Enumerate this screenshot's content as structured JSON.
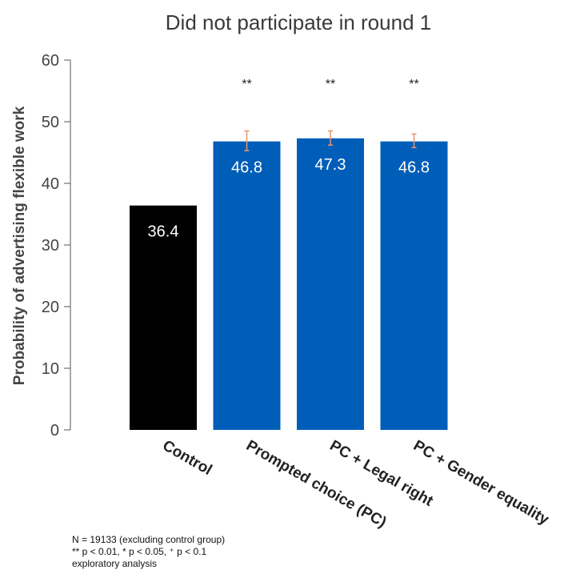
{
  "chart_data": {
    "type": "bar",
    "title": "Did not participate in round 1",
    "xlabel": "",
    "ylabel": "Probability of advertising flexible work",
    "ylim": [
      0,
      60
    ],
    "yticks": [
      0,
      10,
      20,
      30,
      40,
      50,
      60
    ],
    "categories": [
      "Control",
      "Prompted choice (PC)",
      "PC + Legal right",
      "PC + Gender equality"
    ],
    "values": [
      36.4,
      46.8,
      47.3,
      46.8
    ],
    "data_labels": [
      "36.4",
      "46.8",
      "47.3",
      "46.8"
    ],
    "error_bars": [
      null,
      [
        45.3,
        48.5
      ],
      [
        46.2,
        48.5
      ],
      [
        45.8,
        48.0
      ]
    ],
    "significance": [
      "",
      "**",
      "**",
      "**"
    ],
    "bar_colors": [
      "#000000",
      "#005eb8",
      "#005eb8",
      "#005eb8"
    ],
    "error_bar_color": "#e8956a",
    "grid": false,
    "legend": "none"
  },
  "notes": {
    "line1": "N = 19133 (excluding control group)",
    "line2": "** p < 0.01, * p < 0.05, ⁺ p < 0.1",
    "line3": "exploratory analysis"
  }
}
